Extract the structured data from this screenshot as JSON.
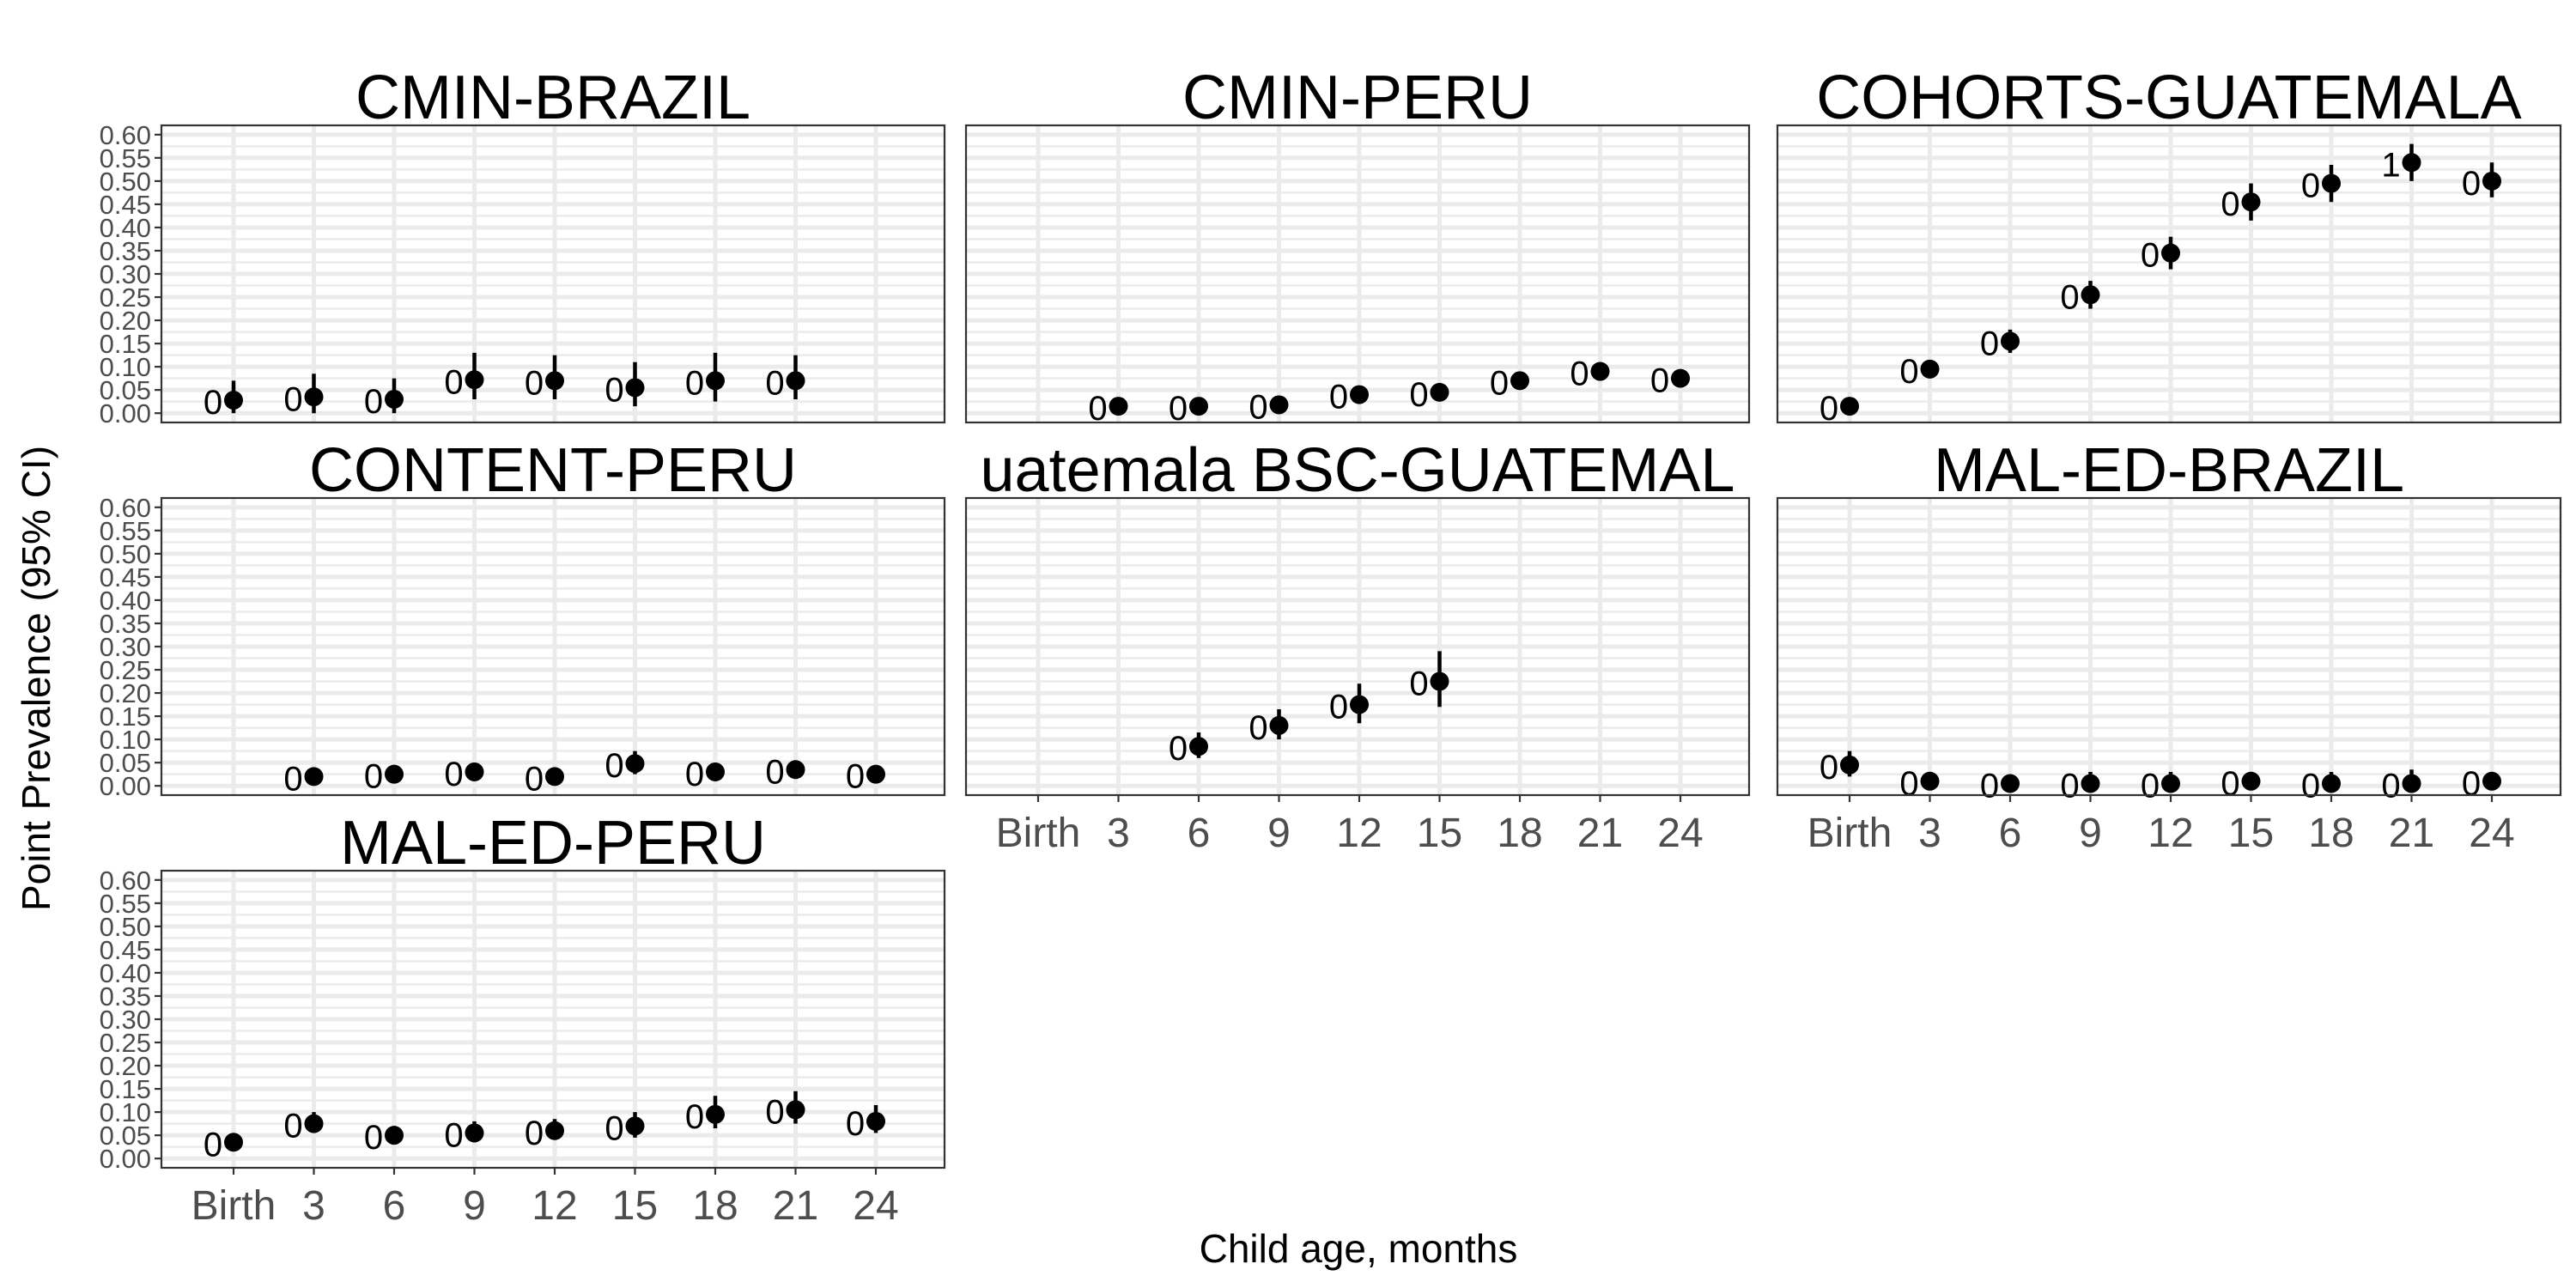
{
  "chart_data": {
    "type": "scatter",
    "ylabel": "Point Prevalence (95% CI)",
    "xlabel": "Child age, months",
    "x_categories": [
      "Birth",
      "3",
      "6",
      "9",
      "12",
      "15",
      "18",
      "21",
      "24"
    ],
    "y_ticks": [
      "0.00",
      "0.05",
      "0.10",
      "0.15",
      "0.20",
      "0.25",
      "0.30",
      "0.35",
      "0.40",
      "0.45",
      "0.50",
      "0.55",
      "0.60"
    ],
    "ylim": [
      -0.02,
      0.62
    ],
    "grid": true,
    "facets": [
      {
        "title": "CMIN-BRAZIL",
        "points": [
          {
            "x": "Birth",
            "y": 0.028,
            "lo": 0.0,
            "hi": 0.07,
            "label": "0"
          },
          {
            "x": "3",
            "y": 0.035,
            "lo": 0.0,
            "hi": 0.085,
            "label": "0"
          },
          {
            "x": "6",
            "y": 0.03,
            "lo": 0.0,
            "hi": 0.075,
            "label": "0"
          },
          {
            "x": "9",
            "y": 0.072,
            "lo": 0.03,
            "hi": 0.13,
            "label": "0"
          },
          {
            "x": "12",
            "y": 0.07,
            "lo": 0.03,
            "hi": 0.125,
            "label": "0"
          },
          {
            "x": "15",
            "y": 0.055,
            "lo": 0.015,
            "hi": 0.11,
            "label": "0"
          },
          {
            "x": "18",
            "y": 0.07,
            "lo": 0.025,
            "hi": 0.13,
            "label": "0"
          },
          {
            "x": "21",
            "y": 0.07,
            "lo": 0.03,
            "hi": 0.125,
            "label": "0"
          }
        ]
      },
      {
        "title": "CMIN-PERU",
        "points": [
          {
            "x": "3",
            "y": 0.015,
            "lo": 0.01,
            "hi": 0.022,
            "label": "0"
          },
          {
            "x": "6",
            "y": 0.015,
            "lo": 0.01,
            "hi": 0.022,
            "label": "0"
          },
          {
            "x": "9",
            "y": 0.018,
            "lo": 0.012,
            "hi": 0.026,
            "label": "0"
          },
          {
            "x": "12",
            "y": 0.04,
            "lo": 0.03,
            "hi": 0.05,
            "label": "0"
          },
          {
            "x": "15",
            "y": 0.045,
            "lo": 0.035,
            "hi": 0.056,
            "label": "0"
          },
          {
            "x": "18",
            "y": 0.07,
            "lo": 0.058,
            "hi": 0.082,
            "label": "0"
          },
          {
            "x": "21",
            "y": 0.09,
            "lo": 0.075,
            "hi": 0.105,
            "label": "0"
          },
          {
            "x": "24",
            "y": 0.075,
            "lo": 0.062,
            "hi": 0.088,
            "label": "0"
          }
        ]
      },
      {
        "title": "COHORTS-GUATEMALA",
        "points": [
          {
            "x": "Birth",
            "y": 0.015,
            "lo": 0.005,
            "hi": 0.025,
            "label": "0"
          },
          {
            "x": "3",
            "y": 0.095,
            "lo": 0.075,
            "hi": 0.115,
            "label": "0"
          },
          {
            "x": "6",
            "y": 0.155,
            "lo": 0.13,
            "hi": 0.18,
            "label": "0"
          },
          {
            "x": "9",
            "y": 0.255,
            "lo": 0.225,
            "hi": 0.285,
            "label": "0"
          },
          {
            "x": "12",
            "y": 0.345,
            "lo": 0.31,
            "hi": 0.38,
            "label": "0"
          },
          {
            "x": "15",
            "y": 0.455,
            "lo": 0.415,
            "hi": 0.495,
            "label": "0"
          },
          {
            "x": "18",
            "y": 0.495,
            "lo": 0.455,
            "hi": 0.535,
            "label": "0"
          },
          {
            "x": "21",
            "y": 0.54,
            "lo": 0.5,
            "hi": 0.58,
            "label": "1"
          },
          {
            "x": "24",
            "y": 0.5,
            "lo": 0.465,
            "hi": 0.54,
            "label": "0"
          }
        ]
      },
      {
        "title": "CONTENT-PERU",
        "points": [
          {
            "x": "3",
            "y": 0.02,
            "lo": 0.005,
            "hi": 0.04,
            "label": "0"
          },
          {
            "x": "6",
            "y": 0.025,
            "lo": 0.01,
            "hi": 0.045,
            "label": "0"
          },
          {
            "x": "9",
            "y": 0.03,
            "lo": 0.012,
            "hi": 0.05,
            "label": "0"
          },
          {
            "x": "12",
            "y": 0.02,
            "lo": 0.005,
            "hi": 0.04,
            "label": "0"
          },
          {
            "x": "15",
            "y": 0.048,
            "lo": 0.025,
            "hi": 0.075,
            "label": "0"
          },
          {
            "x": "18",
            "y": 0.03,
            "lo": 0.012,
            "hi": 0.05,
            "label": "0"
          },
          {
            "x": "21",
            "y": 0.035,
            "lo": 0.015,
            "hi": 0.055,
            "label": "0"
          },
          {
            "x": "24",
            "y": 0.025,
            "lo": 0.01,
            "hi": 0.045,
            "label": "0"
          }
        ]
      },
      {
        "title": "uatemala BSC-GUATEMAL",
        "points": [
          {
            "x": "6",
            "y": 0.085,
            "lo": 0.06,
            "hi": 0.115,
            "label": "0"
          },
          {
            "x": "9",
            "y": 0.13,
            "lo": 0.1,
            "hi": 0.165,
            "label": "0"
          },
          {
            "x": "12",
            "y": 0.175,
            "lo": 0.135,
            "hi": 0.22,
            "label": "0"
          },
          {
            "x": "15",
            "y": 0.225,
            "lo": 0.17,
            "hi": 0.29,
            "label": "0"
          }
        ]
      },
      {
        "title": "MAL-ED-BRAZIL",
        "points": [
          {
            "x": "Birth",
            "y": 0.045,
            "lo": 0.02,
            "hi": 0.075,
            "label": "0"
          },
          {
            "x": "3",
            "y": 0.01,
            "lo": 0.0,
            "hi": 0.03,
            "label": "0"
          },
          {
            "x": "6",
            "y": 0.005,
            "lo": 0.0,
            "hi": 0.025,
            "label": "0"
          },
          {
            "x": "9",
            "y": 0.005,
            "lo": 0.0,
            "hi": 0.03,
            "label": "0"
          },
          {
            "x": "12",
            "y": 0.005,
            "lo": 0.0,
            "hi": 0.03,
            "label": "0"
          },
          {
            "x": "15",
            "y": 0.01,
            "lo": 0.0,
            "hi": 0.03,
            "label": "0"
          },
          {
            "x": "18",
            "y": 0.005,
            "lo": 0.0,
            "hi": 0.03,
            "label": "0"
          },
          {
            "x": "21",
            "y": 0.005,
            "lo": 0.0,
            "hi": 0.035,
            "label": "0"
          },
          {
            "x": "24",
            "y": 0.01,
            "lo": 0.0,
            "hi": 0.03,
            "label": "0"
          }
        ]
      },
      {
        "title": "MAL-ED-PERU",
        "points": [
          {
            "x": "Birth",
            "y": 0.035,
            "lo": 0.02,
            "hi": 0.05,
            "label": "0"
          },
          {
            "x": "3",
            "y": 0.075,
            "lo": 0.055,
            "hi": 0.1,
            "label": "0"
          },
          {
            "x": "6",
            "y": 0.05,
            "lo": 0.03,
            "hi": 0.07,
            "label": "0"
          },
          {
            "x": "9",
            "y": 0.055,
            "lo": 0.035,
            "hi": 0.08,
            "label": "0"
          },
          {
            "x": "12",
            "y": 0.06,
            "lo": 0.04,
            "hi": 0.085,
            "label": "0"
          },
          {
            "x": "15",
            "y": 0.07,
            "lo": 0.045,
            "hi": 0.1,
            "label": "0"
          },
          {
            "x": "18",
            "y": 0.095,
            "lo": 0.065,
            "hi": 0.135,
            "label": "0"
          },
          {
            "x": "21",
            "y": 0.105,
            "lo": 0.075,
            "hi": 0.145,
            "label": "0"
          },
          {
            "x": "24",
            "y": 0.08,
            "lo": 0.055,
            "hi": 0.115,
            "label": "0"
          }
        ]
      }
    ]
  }
}
